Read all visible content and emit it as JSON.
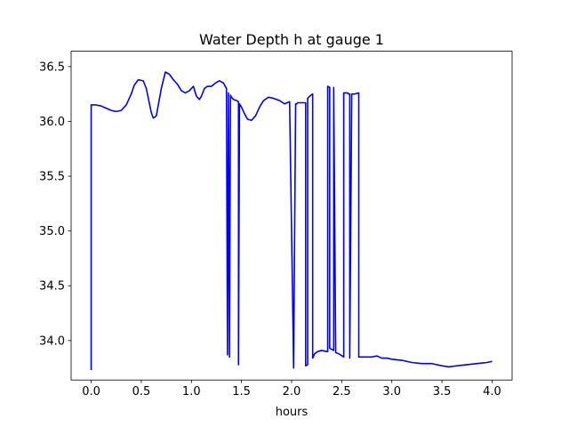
{
  "chart_data": {
    "type": "line",
    "title": "Water Depth h at gauge 1",
    "xlabel": "hours",
    "ylabel": "",
    "xlim": [
      -0.2,
      4.2
    ],
    "ylim": [
      33.64,
      36.64
    ],
    "xticks": [
      0.0,
      0.5,
      1.0,
      1.5,
      2.0,
      2.5,
      3.0,
      3.5,
      4.0
    ],
    "xtick_labels": [
      "0.0",
      "0.5",
      "1.0",
      "1.5",
      "2.0",
      "2.5",
      "3.0",
      "3.5",
      "4.0"
    ],
    "yticks": [
      34.0,
      34.5,
      35.0,
      35.5,
      36.0,
      36.5
    ],
    "ytick_labels": [
      "34.0",
      "34.5",
      "35.0",
      "35.5",
      "36.0",
      "36.5"
    ],
    "grid": false,
    "legend": "none",
    "series": [
      {
        "color": "#0000ff",
        "x": [
          0.0,
          0.0,
          0.05,
          0.1,
          0.15,
          0.2,
          0.25,
          0.3,
          0.35,
          0.4,
          0.43,
          0.47,
          0.52,
          0.55,
          0.6,
          0.62,
          0.65,
          0.7,
          0.74,
          0.78,
          0.82,
          0.86,
          0.9,
          0.94,
          0.98,
          1.02,
          1.05,
          1.08,
          1.1,
          1.13,
          1.16,
          1.2,
          1.24,
          1.28,
          1.32,
          1.35,
          1.36,
          1.37,
          1.37,
          1.38,
          1.39,
          1.4,
          1.4,
          1.42,
          1.45,
          1.47,
          1.47,
          1.48,
          1.5,
          1.53,
          1.56,
          1.6,
          1.64,
          1.68,
          1.72,
          1.77,
          1.82,
          1.88,
          1.93,
          1.98,
          2.02,
          2.02,
          2.04,
          2.04,
          2.06,
          2.1,
          2.14,
          2.14,
          2.16,
          2.16,
          2.18,
          2.21,
          2.21,
          2.23,
          2.26,
          2.3,
          2.35,
          2.36,
          2.36,
          2.38,
          2.38,
          2.42,
          2.42,
          2.44,
          2.47,
          2.52,
          2.52,
          2.56,
          2.57,
          2.58,
          2.58,
          2.6,
          2.63,
          2.67,
          2.67,
          2.69,
          2.75,
          2.8,
          2.85,
          2.9,
          2.95,
          3.0,
          3.1,
          3.2,
          3.3,
          3.4,
          3.5,
          3.57,
          3.65,
          3.75,
          3.85,
          3.95,
          4.0
        ],
        "y": [
          33.73,
          36.15,
          36.15,
          36.14,
          36.12,
          36.1,
          36.09,
          36.1,
          36.15,
          36.25,
          36.33,
          36.38,
          36.37,
          36.3,
          36.08,
          36.03,
          36.05,
          36.3,
          36.45,
          36.43,
          36.38,
          36.34,
          36.28,
          36.26,
          36.28,
          36.32,
          36.23,
          36.2,
          36.23,
          36.3,
          36.32,
          36.32,
          36.35,
          36.37,
          36.35,
          36.3,
          33.87,
          36.26,
          36.25,
          33.85,
          36.24,
          36.22,
          36.22,
          36.2,
          36.19,
          36.18,
          33.78,
          36.16,
          36.13,
          36.07,
          36.02,
          36.01,
          36.05,
          36.13,
          36.19,
          36.22,
          36.21,
          36.19,
          36.16,
          36.18,
          33.76,
          33.75,
          36.16,
          36.15,
          36.17,
          36.17,
          36.17,
          33.77,
          33.78,
          36.21,
          36.23,
          36.25,
          33.84,
          33.88,
          33.9,
          33.91,
          33.9,
          33.9,
          36.32,
          36.31,
          33.93,
          33.91,
          36.31,
          33.89,
          33.88,
          33.85,
          36.26,
          36.26,
          36.25,
          36.25,
          33.84,
          36.25,
          36.25,
          36.26,
          33.85,
          33.85,
          33.85,
          33.85,
          33.86,
          33.84,
          33.84,
          33.83,
          33.82,
          33.8,
          33.79,
          33.79,
          33.77,
          33.76,
          33.77,
          33.78,
          33.79,
          33.8,
          33.81
        ]
      }
    ]
  }
}
